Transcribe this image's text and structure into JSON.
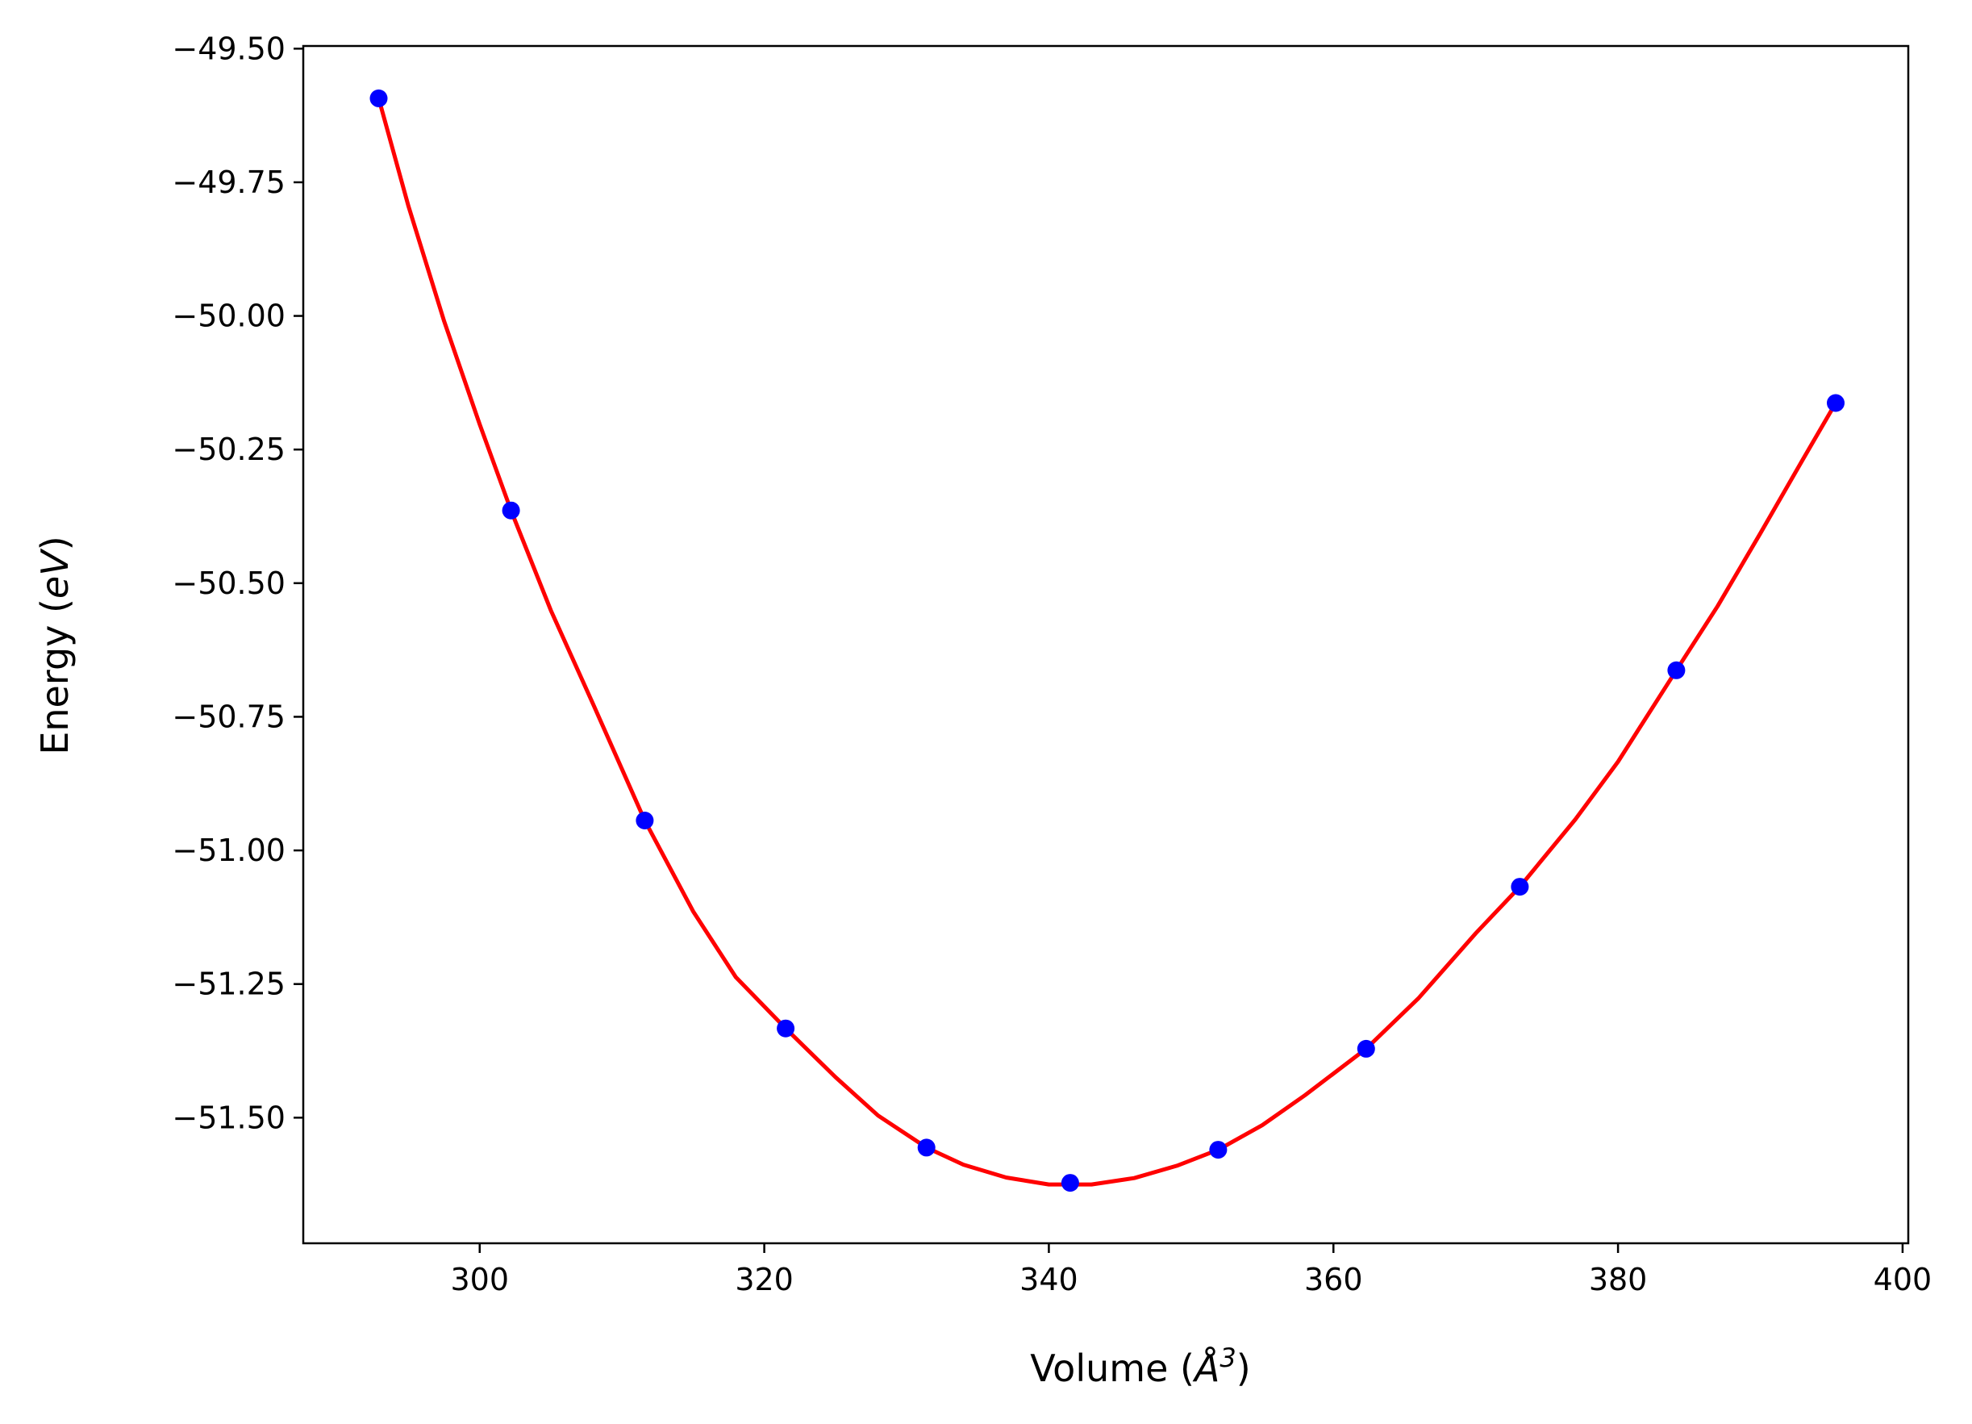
{
  "chart_data": {
    "type": "scatter",
    "xlabel": "Volume (Å³)",
    "xlabel_parts": {
      "prefix": "Volume (",
      "symbol": "Å",
      "exponent": "3",
      "suffix": ")"
    },
    "ylabel": "Energy (eV)",
    "ylabel_parts": {
      "prefix": "Energy (",
      "symbol": "eV",
      "suffix": ")"
    },
    "xlim": [
      287.6,
      400.4
    ],
    "ylim": [
      -51.735,
      -49.495
    ],
    "xticks": [
      300,
      320,
      340,
      360,
      380,
      400
    ],
    "xtick_labels": [
      "300",
      "320",
      "340",
      "360",
      "380",
      "400"
    ],
    "yticks": [
      -49.5,
      -49.75,
      -50.0,
      -50.25,
      -50.5,
      -50.75,
      -51.0,
      -51.25,
      -51.5
    ],
    "ytick_labels": [
      "−49.50",
      "−49.75",
      "−50.00",
      "−50.25",
      "−50.50",
      "−50.75",
      "−51.00",
      "−51.25",
      "−51.50"
    ],
    "grid": false,
    "series": [
      {
        "kind": "points",
        "color": "#0000ff",
        "x": [
          292.9,
          302.2,
          311.6,
          321.5,
          331.4,
          341.5,
          351.9,
          362.3,
          373.1,
          384.1,
          395.3
        ],
        "y": [
          -49.593,
          -50.364,
          -50.944,
          -51.333,
          -51.556,
          -51.622,
          -51.56,
          -51.371,
          -51.068,
          -50.663,
          -50.163
        ]
      },
      {
        "kind": "fit-curve",
        "color": "#ff0000",
        "x": [
          292.9,
          295,
          297.5,
          300,
          302.2,
          305,
          308,
          311.6,
          315,
          318,
          321.5,
          325,
          328,
          331.4,
          334,
          337,
          340,
          343,
          346,
          349,
          351.9,
          355,
          358,
          362.3,
          366,
          370,
          373.1,
          377,
          380,
          384.1,
          387,
          390,
          393,
          395.3
        ],
        "y": [
          -49.593,
          -49.795,
          -50.01,
          -50.203,
          -50.364,
          -50.551,
          -50.728,
          -50.944,
          -51.114,
          -51.237,
          -51.333,
          -51.424,
          -51.496,
          -51.556,
          -51.588,
          -51.612,
          -51.625,
          -51.625,
          -51.613,
          -51.59,
          -51.56,
          -51.514,
          -51.458,
          -51.371,
          -51.276,
          -51.155,
          -51.068,
          -50.942,
          -50.834,
          -50.663,
          -50.543,
          -50.407,
          -50.268,
          -50.163
        ]
      }
    ]
  }
}
